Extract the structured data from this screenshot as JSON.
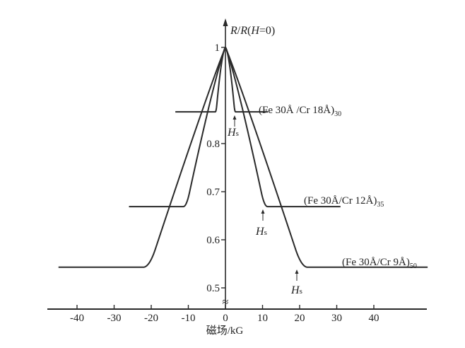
{
  "chart_data": {
    "type": "line",
    "xlabel": "磁场/kG",
    "ylabel_parts": {
      "a": "R",
      "b": "/",
      "c": "R",
      "d": "(",
      "e": "H",
      "f": "=0)"
    },
    "ylabel": "R/R(H=0)",
    "x_ticks": [
      "-40",
      "-30",
      "-20",
      "-10",
      "0",
      "10",
      "20",
      "30",
      "40"
    ],
    "x_tick_values": [
      -40,
      -30,
      -20,
      -10,
      0,
      10,
      20,
      30,
      40
    ],
    "y_ticks": [
      "0.5",
      "0.6",
      "0.7",
      "0.8",
      "1"
    ],
    "y_tick_values": [
      0.5,
      0.6,
      0.7,
      0.8,
      1.0
    ],
    "axis_break_symbol": "≈",
    "xlim": [
      -48,
      55
    ],
    "ylim": [
      0.46,
      1.08
    ],
    "grid": false,
    "series": [
      {
        "name": "(Fe 30Å/Cr 18Å)30",
        "label_main": "(Fe 30Å /Cr 18Å)",
        "label_sub": "30",
        "peak": 1.0,
        "saturation": 0.866,
        "Hs": 2.5,
        "x_range": [
          -13.5,
          11.5
        ],
        "annotation": "Hs"
      },
      {
        "name": "(Fe 30Å/Cr 12Å)35",
        "label_main": "(Fe 30Å/Cr 12Å)",
        "label_sub": "35",
        "peak": 1.0,
        "saturation": 0.669,
        "Hs": 10.5,
        "x_range": [
          -26,
          31
        ],
        "annotation": "Hs"
      },
      {
        "name": "(Fe 30Å/Cr 9Å)50",
        "label_main": "(Fe 30Å/Cr 9Å)",
        "label_sub": "50",
        "peak": 1.0,
        "saturation": 0.543,
        "Hs": 20.5,
        "x_range": [
          -45,
          54.5
        ],
        "annotation": "Hs"
      }
    ],
    "hs_label": {
      "main": "H",
      "sub": "s"
    },
    "color": "#2a2a2a"
  }
}
